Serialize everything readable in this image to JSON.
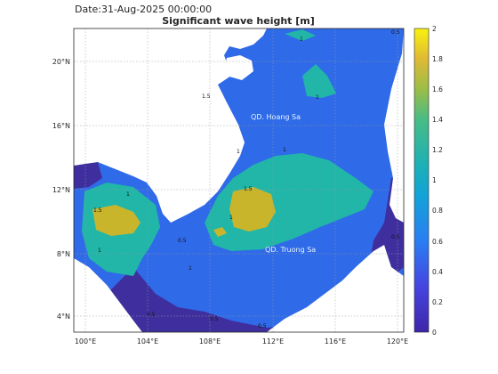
{
  "header": {
    "date_label": "Date:31-Aug-2025 00:00:00",
    "title": "Significant wave height [m]"
  },
  "map": {
    "lon_range": [
      99,
      121
    ],
    "lat_range": [
      3,
      22
    ],
    "x_ticks": [
      "100°E",
      "104°E",
      "108°E",
      "112°E",
      "116°E",
      "120°E"
    ],
    "y_ticks": [
      "4°N",
      "8°N",
      "12°N",
      "16°N",
      "20°N"
    ],
    "labels": {
      "hoang_sa": "QD. Hoang Sa",
      "truong_sa": "QD. Truong Sa"
    },
    "contour_labels": [
      "1",
      "1.5",
      "1",
      "1",
      "1.5",
      "1.5",
      "1",
      "1",
      "1",
      "1",
      "1",
      "0.5",
      "0.5",
      "0.5",
      "0.5",
      "0.5",
      "0.5"
    ],
    "colors": {
      "land": "#ffffff",
      "level_0_5": "#3f2f9e",
      "level_1": "#2f6ae8",
      "level_1_5": "#21b6a8",
      "level_2": "#c9b52c"
    }
  },
  "colorbar": {
    "ticks": [
      "0",
      "0.2",
      "0.4",
      "0.6",
      "0.8",
      "1",
      "1.2",
      "1.4",
      "1.6",
      "1.8",
      "2"
    ],
    "range": [
      0,
      2
    ]
  }
}
